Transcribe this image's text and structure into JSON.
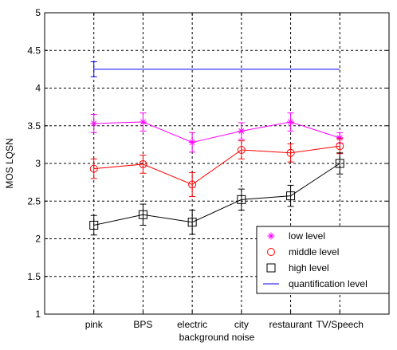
{
  "chart_data": {
    "type": "line",
    "title": "",
    "xlabel": "background noise",
    "ylabel": "MOS LQSN",
    "categories": [
      "pink",
      "BPS",
      "electric",
      "city",
      "restaurant",
      "TV/Speech"
    ],
    "ylim": [
      1,
      5
    ],
    "yticks": [
      "1",
      "1.5",
      "2",
      "2.5",
      "3",
      "3.5",
      "4",
      "4.5",
      "5"
    ],
    "grid": true,
    "legend_position": "bottom-right",
    "series": [
      {
        "name": "low level",
        "marker": "star",
        "color": "#ff00ff",
        "values": [
          3.53,
          3.55,
          3.28,
          3.43,
          3.55,
          3.34
        ],
        "errors": [
          0.12,
          0.12,
          0.13,
          0.11,
          0.12,
          0.07
        ]
      },
      {
        "name": "middle level",
        "marker": "circle",
        "color": "#ff0000",
        "values": [
          2.93,
          2.99,
          2.72,
          3.18,
          3.14,
          3.23
        ],
        "errors": [
          0.13,
          0.12,
          0.16,
          0.12,
          0.12,
          0.1
        ]
      },
      {
        "name": "high level",
        "marker": "square",
        "color": "#000000",
        "values": [
          2.18,
          2.32,
          2.22,
          2.52,
          2.57,
          3.0
        ],
        "errors": [
          0.13,
          0.14,
          0.16,
          0.14,
          0.14,
          0.14
        ]
      },
      {
        "name": "quantification level",
        "marker": "none",
        "color": "#0000ff",
        "values": [
          4.25,
          4.25,
          4.25,
          4.25,
          4.25,
          4.25
        ],
        "errors": [
          0.1,
          0,
          0,
          0,
          0,
          0
        ]
      }
    ]
  }
}
